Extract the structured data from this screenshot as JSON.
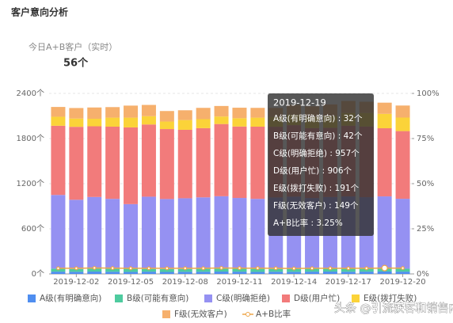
{
  "header": {
    "title": "客户意向分析"
  },
  "kpi": {
    "label": "今日A+B客户（实时）",
    "value": "56个"
  },
  "chart_data": {
    "type": "bar",
    "categories": [
      null,
      "2019-12-02",
      null,
      null,
      "2019-12-05",
      null,
      null,
      "2019-12-08",
      null,
      null,
      "2019-12-11",
      null,
      null,
      "2019-12-14",
      null,
      null,
      "2019-12-17",
      null,
      null,
      "2019-12-20"
    ],
    "ylim": [
      0,
      2400
    ],
    "yticks": [
      {
        "value": 0,
        "label": "0个"
      },
      {
        "value": 600,
        "label": "600个"
      },
      {
        "value": 1200,
        "label": "1200个"
      },
      {
        "value": 1800,
        "label": "1800个"
      },
      {
        "value": 2400,
        "label": "2400个"
      }
    ],
    "y2lim": [
      0,
      100
    ],
    "y2ticks": [
      {
        "value": 0,
        "label": "0%"
      },
      {
        "value": 25,
        "label": "25%"
      },
      {
        "value": 50,
        "label": "50%"
      },
      {
        "value": 75,
        "label": "75%"
      },
      {
        "value": 100,
        "label": "100%"
      }
    ],
    "grid": true,
    "series": [
      {
        "name": "A级(有明确意向)",
        "color": "#4f8ef0",
        "values": [
          30,
          28,
          31,
          29,
          27,
          30,
          26,
          28,
          29,
          31,
          30,
          27,
          29,
          28,
          30,
          31,
          29,
          30,
          32,
          30
        ]
      },
      {
        "name": "B级(可能有意向)",
        "color": "#4ecb9f",
        "values": [
          40,
          38,
          42,
          39,
          41,
          37,
          40,
          38,
          39,
          42,
          40,
          41,
          38,
          40,
          39,
          42,
          41,
          40,
          42,
          39
        ]
      },
      {
        "name": "C级(明确拒绝)",
        "color": "#9591f2",
        "values": [
          980,
          920,
          950,
          930,
          860,
          960,
          930,
          940,
          950,
          960,
          940,
          930,
          950,
          960,
          940,
          950,
          960,
          950,
          957,
          930
        ]
      },
      {
        "name": "D级(用户忙)",
        "color": "#f27b7b",
        "values": [
          920,
          970,
          940,
          960,
          1020,
          960,
          930,
          910,
          920,
          960,
          950,
          960,
          940,
          950,
          930,
          920,
          940,
          940,
          906,
          900
        ]
      },
      {
        "name": "E级(拨打失败)",
        "color": "#fbd339",
        "values": [
          120,
          110,
          100,
          120,
          130,
          110,
          100,
          130,
          120,
          100,
          110,
          120,
          130,
          140,
          150,
          160,
          170,
          180,
          191,
          180
        ]
      },
      {
        "name": "F级(无效客户)",
        "color": "#f6b06d",
        "values": [
          130,
          140,
          150,
          140,
          160,
          150,
          140,
          130,
          150,
          140,
          140,
          130,
          120,
          130,
          140,
          150,
          160,
          150,
          149,
          160
        ]
      },
      {
        "name": "A+B比率",
        "color": "#eea64a",
        "type": "line",
        "axis": "y2",
        "values": [
          3.1,
          3.1,
          3.3,
          3.2,
          3.1,
          3.1,
          3.1,
          3.1,
          3.1,
          3.3,
          3.2,
          3.2,
          3.1,
          3.0,
          3.1,
          3.1,
          3.1,
          3.1,
          3.25,
          3.2
        ]
      }
    ],
    "tooltip": {
      "title": "2019-12-19",
      "rows": [
        "A级(有明确意向) : 32个",
        "B级(可能有意向) : 42个",
        "C级(明确拒绝) : 957个",
        "D级(用户忙) : 906个",
        "E级(拨打失败) : 191个",
        "F级(无效客户) : 149个",
        "A+B比率 : 3.25%"
      ]
    }
  },
  "watermark": "头条 @引流获客和销售内参"
}
